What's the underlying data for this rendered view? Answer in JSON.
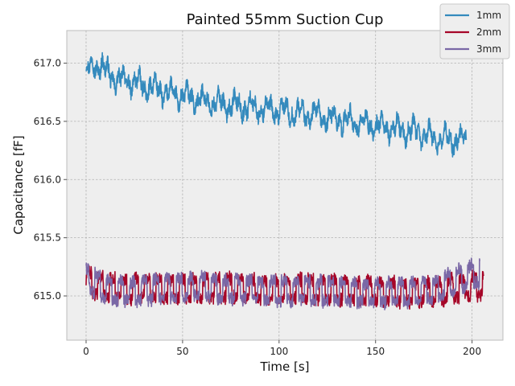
{
  "chart_data": {
    "type": "line",
    "title": "Painted 55mm Suction Cup",
    "xlabel": "Time [s]",
    "ylabel": "Capacitance [fF]",
    "xlim": [
      -10,
      216
    ],
    "ylim": [
      614.62,
      617.28
    ],
    "xticks": [
      0,
      50,
      100,
      150,
      200
    ],
    "yticks": [
      615.0,
      615.5,
      616.0,
      616.5,
      617.0
    ],
    "xtick_labels": [
      "0",
      "50",
      "100",
      "150",
      "200"
    ],
    "ytick_labels": [
      "615.0",
      "615.5",
      "616.0",
      "616.5",
      "617.0"
    ],
    "grid": true,
    "legend_position": "top-right",
    "series": [
      {
        "name": "1mm",
        "color": "#348abd",
        "x": [
          0,
          4,
          8,
          10,
          15,
          20,
          25,
          30,
          35,
          40,
          45,
          50,
          55,
          60,
          65,
          70,
          75,
          80,
          85,
          90,
          95,
          100,
          105,
          110,
          115,
          120,
          125,
          130,
          135,
          140,
          145,
          150,
          155,
          160,
          165,
          170,
          175,
          180,
          185,
          190,
          195,
          197
        ],
        "y": [
          616.93,
          616.97,
          617.0,
          616.92,
          616.87,
          616.85,
          616.84,
          616.8,
          616.79,
          616.76,
          616.73,
          616.72,
          616.7,
          616.68,
          616.66,
          616.65,
          616.64,
          616.63,
          616.62,
          616.61,
          616.6,
          616.59,
          616.58,
          616.57,
          616.56,
          616.55,
          616.53,
          616.52,
          616.51,
          616.49,
          616.48,
          616.46,
          616.45,
          616.44,
          616.42,
          616.41,
          616.39,
          616.36,
          616.35,
          616.34,
          616.34,
          616.35
        ],
        "fluctuation_range": [
          616.15,
          617.16
        ]
      },
      {
        "name": "2mm",
        "color": "#a60628",
        "x": [
          0,
          10,
          20,
          30,
          40,
          50,
          60,
          70,
          80,
          90,
          100,
          110,
          120,
          130,
          140,
          150,
          160,
          170,
          180,
          190,
          200,
          206
        ],
        "y": [
          615.12,
          615.08,
          615.06,
          615.07,
          615.06,
          615.07,
          615.06,
          615.07,
          615.06,
          615.06,
          615.05,
          615.06,
          615.05,
          615.05,
          615.04,
          615.04,
          615.03,
          615.03,
          615.04,
          615.06,
          615.08,
          615.1
        ],
        "fluctuation_range": [
          614.72,
          615.32
        ]
      },
      {
        "name": "3mm",
        "color": "#7a68a6",
        "x": [
          0,
          10,
          20,
          30,
          40,
          50,
          60,
          70,
          80,
          90,
          100,
          110,
          120,
          130,
          140,
          150,
          160,
          170,
          180,
          190,
          200,
          204
        ],
        "y": [
          615.15,
          615.05,
          615.03,
          615.05,
          615.06,
          615.07,
          615.08,
          615.06,
          615.06,
          615.05,
          615.04,
          615.05,
          615.04,
          615.04,
          615.03,
          615.03,
          615.03,
          615.04,
          615.05,
          615.12,
          615.18,
          615.2
        ],
        "fluctuation_range": [
          614.77,
          615.4
        ]
      }
    ]
  }
}
